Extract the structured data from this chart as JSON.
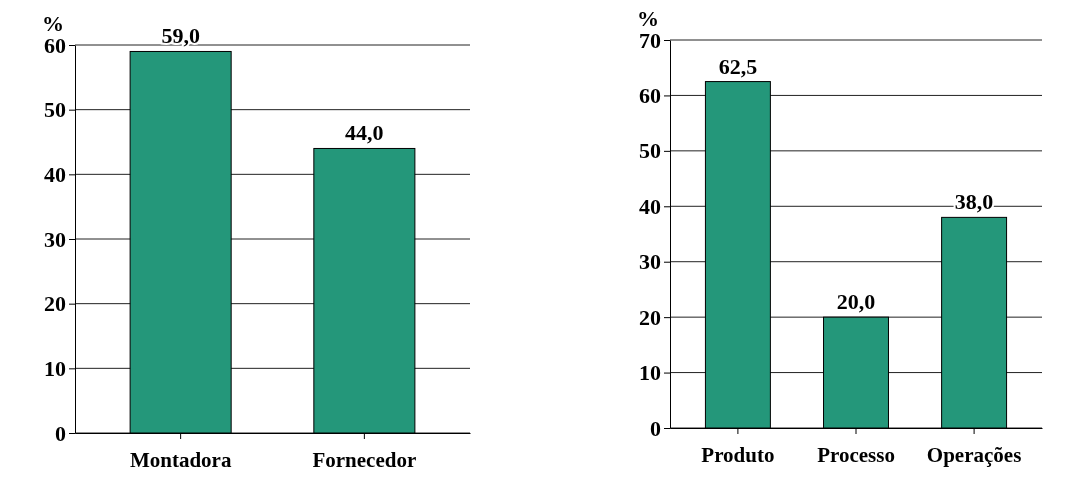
{
  "chart_data": [
    {
      "type": "bar",
      "ylabel": "%",
      "categories": [
        "Montadora",
        "Fornecedor"
      ],
      "values": [
        59.0,
        44.0
      ],
      "value_labels": [
        "59,0",
        "44,0"
      ],
      "color": "#24977a",
      "ylim": [
        0,
        60
      ],
      "yticks": [
        0,
        10,
        20,
        30,
        40,
        50,
        60
      ],
      "grid": "y"
    },
    {
      "type": "bar",
      "ylabel": "%",
      "categories": [
        "Produto",
        "Processo",
        "Operações"
      ],
      "values": [
        62.5,
        20.0,
        38.0
      ],
      "value_labels": [
        "62,5",
        "20,0",
        "38,0"
      ],
      "color": "#24977a",
      "ylim": [
        0,
        70
      ],
      "yticks": [
        0,
        10,
        20,
        30,
        40,
        50,
        60,
        70
      ],
      "grid": "y"
    }
  ]
}
